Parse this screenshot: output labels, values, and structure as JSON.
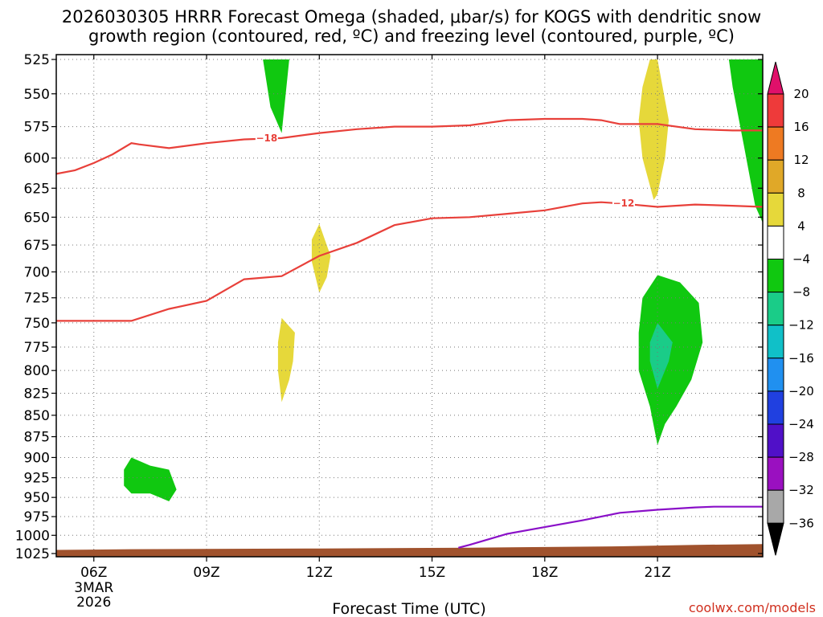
{
  "title_line1": "2026030305 HRRR Forecast Omega (shaded, μbar/s) for KOGS with dendritic snow",
  "title_line2": "growth region (contoured, red, ºC) and freezing level (contoured, purple, ºC)",
  "credit": "coolwx.com/models",
  "colors": {
    "terrain": "#a0522d",
    "dendritic": "#e8403a",
    "freezing": "#8a10c8",
    "grid": "#777777"
  },
  "chart_data": {
    "type": "heatmap",
    "title": "2026030305 HRRR Forecast Omega (shaded, μbar/s) for KOGS with dendritic snow growth region (contoured, red, ºC) and freezing level (contoured, purple, ºC)",
    "xlabel": "Forecast Time (UTC)",
    "ylabel": "",
    "x_range_hours": [
      5.0,
      23.8
    ],
    "y_range_mb": [
      525,
      1025
    ],
    "x_ticks": [
      {
        "hour": 6,
        "label": "06Z",
        "sub": [
          "3MAR",
          "2026"
        ]
      },
      {
        "hour": 9,
        "label": "09Z"
      },
      {
        "hour": 12,
        "label": "12Z"
      },
      {
        "hour": 15,
        "label": "15Z"
      },
      {
        "hour": 18,
        "label": "18Z"
      },
      {
        "hour": 21,
        "label": "21Z"
      }
    ],
    "y_ticks": [
      525,
      550,
      575,
      600,
      625,
      650,
      675,
      700,
      725,
      750,
      775,
      800,
      825,
      850,
      875,
      900,
      925,
      950,
      975,
      1000,
      1025
    ],
    "grid": true,
    "colorbar": {
      "bands": [
        {
          "from": 16,
          "to": 20,
          "color": "#ee3a3a"
        },
        {
          "from": 12,
          "to": 16,
          "color": "#ee7a22"
        },
        {
          "from": 8,
          "to": 12,
          "color": "#e0a828"
        },
        {
          "from": 4,
          "to": 8,
          "color": "#e6d83a"
        },
        {
          "from": -4,
          "to": 4,
          "color": "#ffffff"
        },
        {
          "from": -8,
          "to": -4,
          "color": "#10c810"
        },
        {
          "from": -12,
          "to": -8,
          "color": "#1acc88"
        },
        {
          "from": -16,
          "to": -12,
          "color": "#10c0c8"
        },
        {
          "from": -20,
          "to": -16,
          "color": "#2090f0"
        },
        {
          "from": -24,
          "to": -20,
          "color": "#2040e0"
        },
        {
          "from": -28,
          "to": -24,
          "color": "#5010c8"
        },
        {
          "from": -32,
          "to": -28,
          "color": "#9a10c0"
        },
        {
          "from": -36,
          "to": -32,
          "color": "#a8a8a8"
        }
      ],
      "top_arrow_color": "#e0106a",
      "bottom_arrow_color": "#000000",
      "labels": [
        "20",
        "16",
        "12",
        "8",
        "4",
        "−4",
        "−8",
        "−12",
        "−16",
        "−20",
        "−24",
        "−28",
        "−32",
        "−36"
      ]
    },
    "shaded_regions": [
      {
        "value_range": "-8 to -4",
        "color": "#10c810",
        "points": [
          [
            10.5,
            525
          ],
          [
            11.2,
            525
          ],
          [
            11.0,
            580
          ],
          [
            10.7,
            560
          ]
        ]
      },
      {
        "value_range": "-8 to -4",
        "color": "#10c810",
        "points": [
          [
            22.9,
            525
          ],
          [
            23.8,
            525
          ],
          [
            23.8,
            655
          ],
          [
            23.6,
            640
          ],
          [
            23.3,
            590
          ],
          [
            23.0,
            545
          ]
        ]
      },
      {
        "value_range": "4 to 8",
        "color": "#e6d83a",
        "points": [
          [
            20.8,
            525
          ],
          [
            21.0,
            525
          ],
          [
            21.3,
            570
          ],
          [
            21.2,
            600
          ],
          [
            21.0,
            630
          ],
          [
            20.9,
            635
          ],
          [
            20.6,
            600
          ],
          [
            20.5,
            570
          ],
          [
            20.6,
            545
          ]
        ]
      },
      {
        "value_range": "4 to 8",
        "color": "#e6d83a",
        "points": [
          [
            12.0,
            656
          ],
          [
            12.3,
            685
          ],
          [
            12.2,
            705
          ],
          [
            12.0,
            720
          ],
          [
            11.8,
            690
          ],
          [
            11.8,
            670
          ]
        ]
      },
      {
        "value_range": "4 to 8",
        "color": "#e6d83a",
        "points": [
          [
            11.0,
            745
          ],
          [
            11.35,
            760
          ],
          [
            11.3,
            790
          ],
          [
            11.2,
            810
          ],
          [
            11.0,
            835
          ],
          [
            10.9,
            800
          ],
          [
            10.9,
            770
          ]
        ]
      },
      {
        "value_range": "-8 to -4",
        "color": "#10c810",
        "points": [
          [
            20.6,
            725
          ],
          [
            21.0,
            703
          ],
          [
            21.6,
            710
          ],
          [
            22.1,
            730
          ],
          [
            22.2,
            770
          ],
          [
            21.9,
            810
          ],
          [
            21.5,
            840
          ],
          [
            21.2,
            860
          ],
          [
            21.0,
            885
          ],
          [
            20.8,
            840
          ],
          [
            20.5,
            800
          ],
          [
            20.5,
            760
          ]
        ]
      },
      {
        "value_range": "-12 to -8",
        "color": "#1acc88",
        "points": [
          [
            21.0,
            750
          ],
          [
            21.4,
            770
          ],
          [
            21.3,
            790
          ],
          [
            21.0,
            820
          ],
          [
            20.8,
            790
          ],
          [
            20.8,
            770
          ]
        ]
      },
      {
        "value_range": "-8 to -4",
        "color": "#10c810",
        "points": [
          [
            7.0,
            900
          ],
          [
            7.5,
            910
          ],
          [
            8.0,
            915
          ],
          [
            8.2,
            940
          ],
          [
            8.0,
            955
          ],
          [
            7.5,
            945
          ],
          [
            7.0,
            945
          ],
          [
            6.8,
            935
          ],
          [
            6.8,
            915
          ]
        ]
      }
    ],
    "contours": [
      {
        "name": "-18",
        "color": "#e8403a",
        "points": [
          [
            5.0,
            613
          ],
          [
            5.5,
            610
          ],
          [
            6.0,
            604
          ],
          [
            6.5,
            597
          ],
          [
            7.0,
            588
          ],
          [
            7.2,
            589
          ],
          [
            8.0,
            592
          ],
          [
            9.0,
            588
          ],
          [
            10.0,
            585
          ],
          [
            11.0,
            584
          ],
          [
            12.0,
            580
          ],
          [
            13.0,
            577
          ],
          [
            14.0,
            575
          ],
          [
            15.0,
            575
          ],
          [
            16.0,
            574
          ],
          [
            17.0,
            570
          ],
          [
            18.0,
            569
          ],
          [
            19.0,
            569
          ],
          [
            19.5,
            570
          ],
          [
            20.0,
            573
          ],
          [
            21.0,
            573
          ],
          [
            22.0,
            577
          ],
          [
            23.0,
            578
          ],
          [
            23.8,
            578
          ]
        ],
        "label_at": [
          10.6,
          584
        ]
      },
      {
        "name": "-12",
        "color": "#e8403a",
        "points": [
          [
            5.0,
            748
          ],
          [
            6.5,
            748
          ],
          [
            7.0,
            748
          ],
          [
            8.0,
            736
          ],
          [
            9.0,
            728
          ],
          [
            10.0,
            707
          ],
          [
            11.0,
            704
          ],
          [
            12.0,
            685
          ],
          [
            13.0,
            673
          ],
          [
            14.0,
            657
          ],
          [
            15.0,
            651
          ],
          [
            16.0,
            650
          ],
          [
            17.0,
            647
          ],
          [
            18.0,
            644
          ],
          [
            19.0,
            638
          ],
          [
            19.5,
            637
          ],
          [
            20.0,
            638
          ],
          [
            21.0,
            641
          ],
          [
            22.0,
            639
          ],
          [
            23.0,
            640
          ],
          [
            23.8,
            641
          ]
        ],
        "label_at": [
          20.1,
          638
        ]
      },
      {
        "name": "0",
        "color": "#8a10c8",
        "points": [
          [
            15.7,
            1017
          ],
          [
            16.0,
            1013
          ],
          [
            17.0,
            998
          ],
          [
            18.0,
            989
          ],
          [
            19.0,
            980
          ],
          [
            20.0,
            970
          ],
          [
            21.0,
            966
          ],
          [
            22.0,
            963
          ],
          [
            22.5,
            962
          ],
          [
            23.8,
            962
          ]
        ]
      }
    ],
    "terrain": {
      "color": "#a0522d",
      "points": [
        [
          5.0,
          1020
        ],
        [
          7.0,
          1019
        ],
        [
          12.0,
          1018
        ],
        [
          16.0,
          1017
        ],
        [
          20.0,
          1015
        ],
        [
          22.0,
          1013
        ],
        [
          23.8,
          1012
        ]
      ]
    }
  }
}
